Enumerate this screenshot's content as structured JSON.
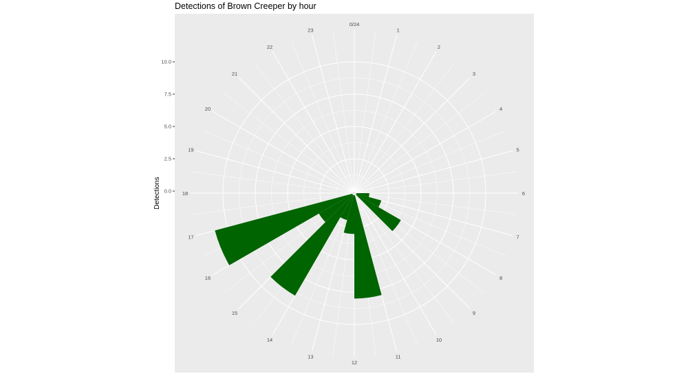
{
  "chart_data": {
    "type": "bar",
    "coord": "polar",
    "title": "Detections of Brown Creeper by hour",
    "xlabel": "",
    "ylabel": "Detections",
    "hour_labels": [
      "0/24",
      "1",
      "2",
      "3",
      "4",
      "5",
      "6",
      "7",
      "8",
      "9",
      "10",
      "11",
      "12",
      "13",
      "14",
      "15",
      "16",
      "17",
      "18",
      "19",
      "20",
      "21",
      "22",
      "23"
    ],
    "y_ticks": [
      0,
      2.5,
      5,
      7.5,
      10
    ],
    "y_tick_labels": [
      "0.0",
      "2.5",
      "5.0",
      "7.5",
      "10.0"
    ],
    "ylim": [
      0,
      12.5
    ],
    "grid": true,
    "bar_color": "#006400",
    "panel_color": "#ebebeb",
    "bars": [
      {
        "hour": 6.5,
        "value": 1
      },
      {
        "hour": 7.5,
        "value": 2
      },
      {
        "hour": 8.5,
        "value": 4
      },
      {
        "hour": 11.5,
        "value": 8
      },
      {
        "hour": 12.5,
        "value": 3
      },
      {
        "hour": 13.5,
        "value": 2
      },
      {
        "hour": 14.5,
        "value": 9
      },
      {
        "hour": 15.5,
        "value": 3
      },
      {
        "hour": 16.5,
        "value": 11
      }
    ]
  }
}
